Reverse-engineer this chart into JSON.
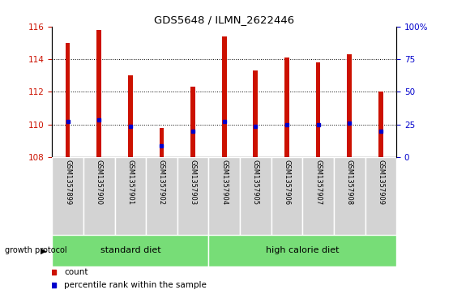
{
  "title": "GDS5648 / ILMN_2622446",
  "samples": [
    "GSM1357899",
    "GSM1357900",
    "GSM1357901",
    "GSM1357902",
    "GSM1357903",
    "GSM1357904",
    "GSM1357905",
    "GSM1357906",
    "GSM1357907",
    "GSM1357908",
    "GSM1357909"
  ],
  "count_values": [
    115.0,
    115.8,
    113.0,
    109.8,
    112.3,
    115.4,
    113.3,
    114.1,
    113.8,
    114.3,
    112.0
  ],
  "percentile_values": [
    110.2,
    110.3,
    109.9,
    108.7,
    109.6,
    110.2,
    109.9,
    110.0,
    110.0,
    110.1,
    109.6
  ],
  "baseline": 108,
  "ylim": [
    108,
    116
  ],
  "yticks_left": [
    108,
    110,
    112,
    114,
    116
  ],
  "yticks_right": [
    0,
    25,
    50,
    75,
    100
  ],
  "bar_color": "#cc1100",
  "percentile_color": "#0000cc",
  "bg_color_samples": "#d3d3d3",
  "bg_color_green": "#77dd77",
  "standard_label": "standard diet",
  "high_label": "high calorie diet",
  "protocol_label": "growth protocol",
  "left_tick_color": "#cc1100",
  "right_tick_color": "#0000cc",
  "bar_width": 0.15
}
